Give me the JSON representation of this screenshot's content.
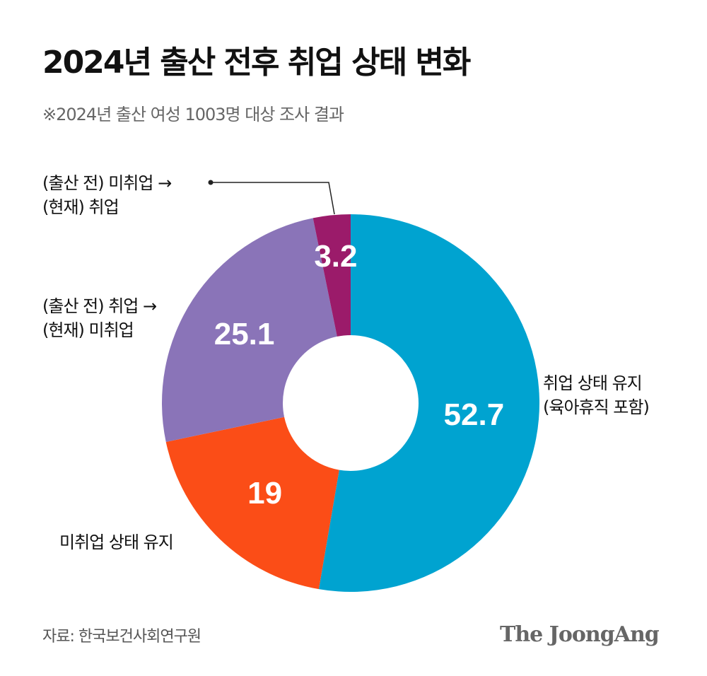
{
  "title": "2024년 출산 전후 취업 상태 변화",
  "subtitle": "※2024년 출산 여성 1003명 대상 조사 결과",
  "source": "자료: 한국보건사회연구원",
  "logo": "The JoongAng",
  "chart_data": {
    "type": "pie",
    "variant": "donut",
    "start": "12 o'clock, clockwise",
    "categories": [
      "취업 상태 유지 (육아휴직 포함)",
      "미취업 상태 유지",
      "(출산 전) 취업 → (현재) 미취업",
      "(출산 전) 미취업 → (현재) 취업"
    ],
    "values": [
      52.7,
      19,
      25.1,
      3.2
    ],
    "data_labels": [
      "52.7",
      "19",
      "25.1",
      "3.2"
    ],
    "colors": [
      "#00a3d0",
      "#fb4d17",
      "#8a74b8",
      "#9b1b6a"
    ],
    "label_lines": [
      [
        "취업 상태 유지",
        "(육아휴직 포함)"
      ],
      [
        "미취업 상태 유지"
      ],
      [
        "(출산 전) 취업 →",
        "(현재) 미취업"
      ],
      [
        "(출산 전) 미취업 →",
        "(현재) 취업"
      ]
    ]
  }
}
